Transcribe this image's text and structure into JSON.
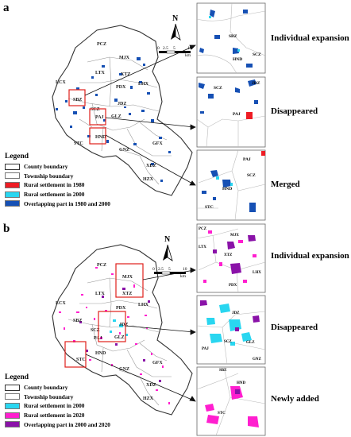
{
  "panels": [
    {
      "label": "a",
      "legend": {
        "title": "Legend",
        "items": [
          {
            "label": "County boundary",
            "color": "#ffffff"
          },
          {
            "label": "Township boundary",
            "color": "#ffffff"
          },
          {
            "label": "Rural settlement in 1980",
            "color": "#ee1c24"
          },
          {
            "label": "Rural settlement in 2000",
            "color": "#29d6f0"
          },
          {
            "label": "Overlapping part in 1980 and 2000",
            "color": "#1650b4"
          }
        ]
      },
      "scalebar": {
        "labels": [
          "0",
          "2.5",
          "5",
          "10"
        ],
        "unit": "km"
      },
      "north": "N",
      "townships": [
        "PCZ",
        "MJX",
        "LTX",
        "XTZ",
        "LCX",
        "LHX",
        "PDX",
        "SBZ",
        "JDZ",
        "SCZ",
        "PAJ",
        "GLZ",
        "HND",
        "STC",
        "GFX",
        "GNZ",
        "XDZ",
        "HZX"
      ],
      "insets": [
        {
          "caption": "Individual expansion",
          "labels": [
            "SBZ",
            "HND",
            "SCZ"
          ]
        },
        {
          "caption": "Disappeared",
          "labels": [
            "SCZ",
            "JDZ",
            "PAJ"
          ]
        },
        {
          "caption": "Merged",
          "labels": [
            "PAJ",
            "SCZ",
            "HND",
            "STC"
          ]
        }
      ]
    },
    {
      "label": "b",
      "legend": {
        "title": "Legend",
        "items": [
          {
            "label": "County boundary",
            "color": "#ffffff"
          },
          {
            "label": "Township boundary",
            "color": "#ffffff"
          },
          {
            "label": "Rural settlement in 2000",
            "color": "#29d6f0"
          },
          {
            "label": "Rural settlement in 2020",
            "color": "#ff1fcf"
          },
          {
            "label": "Overlapping part in 2000 and 2020",
            "color": "#8a12a8"
          }
        ]
      },
      "scalebar": {
        "labels": [
          "0",
          "2.5",
          "5",
          "10"
        ],
        "unit": "km"
      },
      "north": "N",
      "townships": [
        "PCZ",
        "MJX",
        "LTX",
        "XTZ",
        "LCX",
        "LHX",
        "PDX",
        "SBZ",
        "JDZ",
        "SCZ",
        "PAJ",
        "GLZ",
        "HND",
        "STC",
        "GFX",
        "GNZ",
        "XDZ",
        "HZX"
      ],
      "insets": [
        {
          "caption": "Individual expansion",
          "labels": [
            "PCZ",
            "MJX",
            "LTX",
            "XTZ",
            "LHX",
            "PDX"
          ]
        },
        {
          "caption": "Disappeared",
          "labels": [
            "JDZ",
            "SCZ",
            "PAJ",
            "GLZ",
            "GNZ"
          ]
        },
        {
          "caption": "Newly added",
          "labels": [
            "SBZ",
            "HND",
            "STC"
          ]
        }
      ]
    }
  ]
}
